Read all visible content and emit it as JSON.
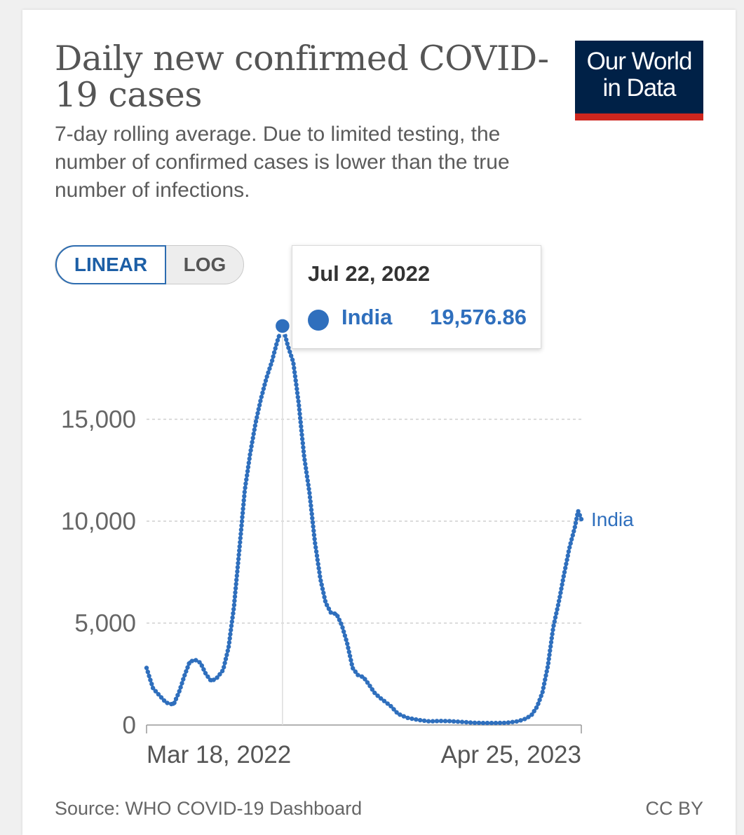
{
  "header": {
    "title": "Daily new confirmed COVID-19 cases",
    "subtitle": "7-day rolling average. Due to limited testing, the number of confirmed cases is lower than the true number of infections.",
    "logo_line1": "Our World",
    "logo_line2": "in Data"
  },
  "controls": {
    "linear_label": "LINEAR",
    "log_label": "LOG"
  },
  "tooltip": {
    "date": "Jul 22, 2022",
    "series_name": "India",
    "value": "19,576.86"
  },
  "footer": {
    "source": "Source: WHO COVID-19 Dashboard",
    "license": "CC BY"
  },
  "colors": {
    "series": "#2f6fbd",
    "logo_bg": "#002147",
    "logo_bar": "#ce261e",
    "grid": "#cccccc"
  },
  "chart_data": {
    "type": "line",
    "title": "Daily new confirmed COVID-19 cases",
    "subtitle": "7-day rolling average. Due to limited testing, the number of confirmed cases is lower than the true number of infections.",
    "scale": "linear",
    "y_ticks": [
      0,
      5000,
      10000,
      15000
    ],
    "y_tick_labels": [
      "0",
      "5,000",
      "10,000",
      "15,000"
    ],
    "ylim": [
      0,
      20000
    ],
    "x_tick_labels": [
      "Mar 18, 2022",
      "Apr 25, 2023"
    ],
    "xlim": [
      "2022-03-18",
      "2023-04-25"
    ],
    "grid": "horizontal dashed",
    "series": [
      {
        "name": "India",
        "end_label": "India",
        "points": [
          [
            "2022-03-18",
            2800
          ],
          [
            "2022-03-24",
            1800
          ],
          [
            "2022-03-30",
            1450
          ],
          [
            "2022-04-05",
            1100
          ],
          [
            "2022-04-12",
            1000
          ],
          [
            "2022-04-17",
            1600
          ],
          [
            "2022-04-22",
            2400
          ],
          [
            "2022-04-27",
            3100
          ],
          [
            "2022-05-02",
            3200
          ],
          [
            "2022-05-07",
            3050
          ],
          [
            "2022-05-12",
            2500
          ],
          [
            "2022-05-17",
            2150
          ],
          [
            "2022-05-22",
            2300
          ],
          [
            "2022-05-28",
            2700
          ],
          [
            "2022-06-02",
            3800
          ],
          [
            "2022-06-07",
            5800
          ],
          [
            "2022-06-12",
            8600
          ],
          [
            "2022-06-17",
            11500
          ],
          [
            "2022-06-22",
            13300
          ],
          [
            "2022-06-27",
            14800
          ],
          [
            "2022-07-02",
            16000
          ],
          [
            "2022-07-07",
            17000
          ],
          [
            "2022-07-12",
            17800
          ],
          [
            "2022-07-17",
            18800
          ],
          [
            "2022-07-22",
            19576.86
          ],
          [
            "2022-07-27",
            18600
          ],
          [
            "2022-08-01",
            17800
          ],
          [
            "2022-08-06",
            15800
          ],
          [
            "2022-08-11",
            13200
          ],
          [
            "2022-08-16",
            11400
          ],
          [
            "2022-08-21",
            9000
          ],
          [
            "2022-08-26",
            7200
          ],
          [
            "2022-08-31",
            6000
          ],
          [
            "2022-09-05",
            5500
          ],
          [
            "2022-09-10",
            5450
          ],
          [
            "2022-09-15",
            4900
          ],
          [
            "2022-09-20",
            4000
          ],
          [
            "2022-09-25",
            2800
          ],
          [
            "2022-09-30",
            2450
          ],
          [
            "2022-10-05",
            2350
          ],
          [
            "2022-10-10",
            2000
          ],
          [
            "2022-10-15",
            1600
          ],
          [
            "2022-10-20",
            1350
          ],
          [
            "2022-10-25",
            1150
          ],
          [
            "2022-10-31",
            900
          ],
          [
            "2022-11-06",
            550
          ],
          [
            "2022-11-15",
            350
          ],
          [
            "2022-11-25",
            250
          ],
          [
            "2022-12-05",
            180
          ],
          [
            "2022-12-15",
            200
          ],
          [
            "2022-12-25",
            190
          ],
          [
            "2023-01-05",
            150
          ],
          [
            "2023-01-15",
            110
          ],
          [
            "2023-01-25",
            100
          ],
          [
            "2023-02-05",
            100
          ],
          [
            "2023-02-15",
            110
          ],
          [
            "2023-02-25",
            180
          ],
          [
            "2023-03-05",
            320
          ],
          [
            "2023-03-10",
            500
          ],
          [
            "2023-03-15",
            900
          ],
          [
            "2023-03-20",
            1600
          ],
          [
            "2023-03-25",
            2900
          ],
          [
            "2023-03-30",
            4800
          ],
          [
            "2023-04-04",
            6000
          ],
          [
            "2023-04-09",
            7400
          ],
          [
            "2023-04-14",
            8700
          ],
          [
            "2023-04-19",
            9700
          ],
          [
            "2023-04-22",
            10500
          ],
          [
            "2023-04-25",
            10100
          ]
        ]
      }
    ],
    "highlight": {
      "date": "2022-07-22",
      "value": 19576.86
    }
  }
}
